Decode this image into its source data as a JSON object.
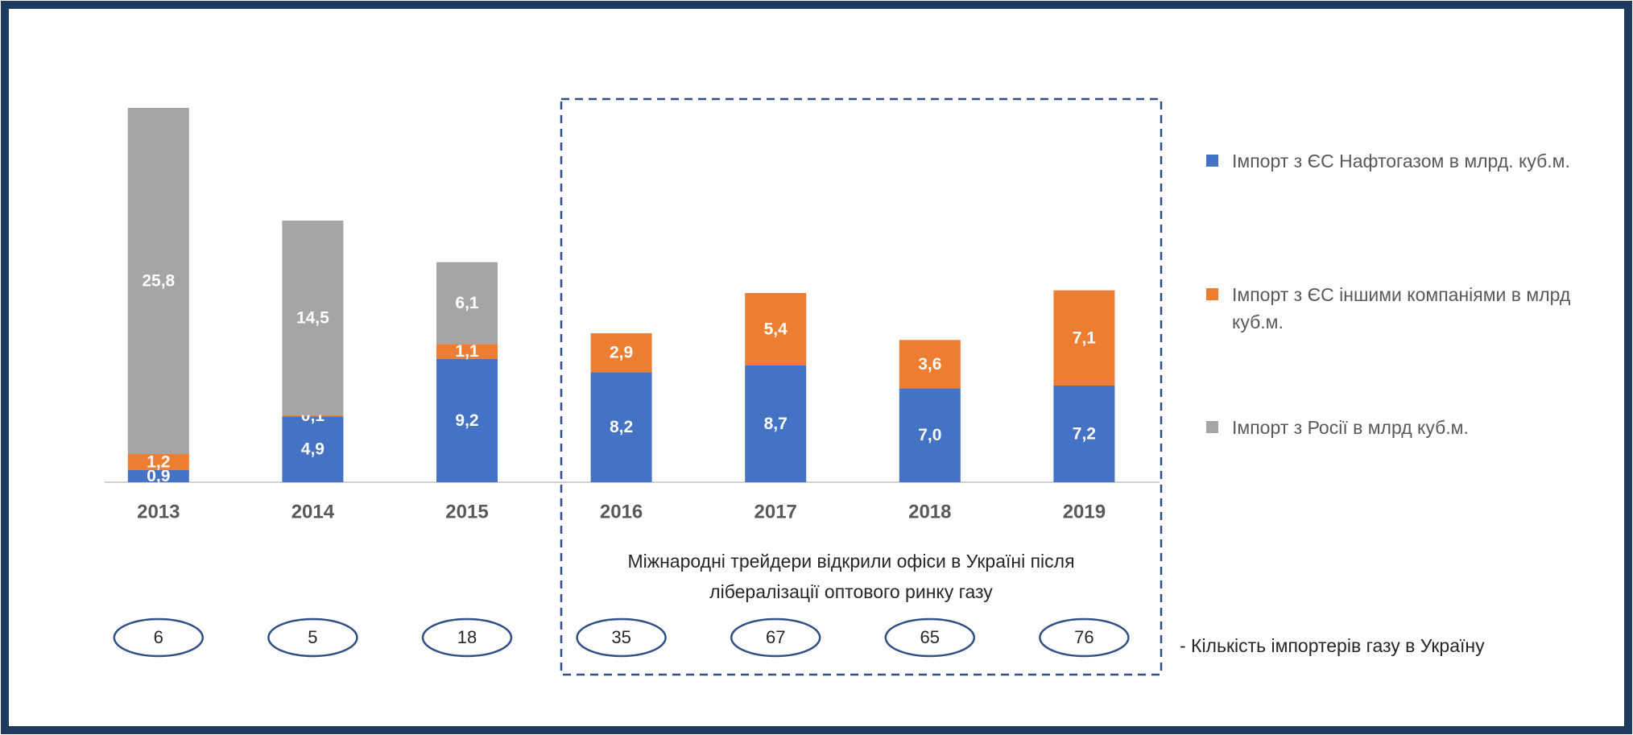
{
  "chart_data": {
    "type": "stacked_bar",
    "categories": [
      "2013",
      "2014",
      "2015",
      "2016",
      "2017",
      "2018",
      "2019"
    ],
    "ylim": [
      0,
      30
    ],
    "series": [
      {
        "name": "Імпорт з ЄС Нафтогазом в млрд. куб.м.",
        "color": "#4472c4",
        "values": [
          0.9,
          4.9,
          9.2,
          8.2,
          8.7,
          7.0,
          7.2
        ],
        "value_labels": [
          "0,9",
          "4,9",
          "9,2",
          "8,2",
          "8,7",
          "7,0",
          "7,2"
        ]
      },
      {
        "name": "Імпорт з ЄС іншими компаніями в млрд куб.м.",
        "color": "#ed7d31",
        "values": [
          1.2,
          0.1,
          1.1,
          2.9,
          5.4,
          3.6,
          7.1
        ],
        "value_labels": [
          "1,2",
          "0,1",
          "1,1",
          "2,9",
          "5,4",
          "3,6",
          "7,1"
        ]
      },
      {
        "name": "Імпорт з Росії в млрд куб.м.",
        "color": "#a5a5a5",
        "values": [
          25.8,
          14.5,
          6.1,
          null,
          null,
          null,
          null
        ],
        "value_labels": [
          "25,8",
          "14,5",
          "6,1",
          null,
          null,
          null,
          null
        ]
      }
    ],
    "annotation": [
      "Міжнародні трейдери відкрили офіси в Україні після",
      "лібералізації оптового ринку газу"
    ],
    "importers": {
      "label": "- Кількість імпортерів газу в Україну",
      "values": [
        6,
        5,
        18,
        35,
        67,
        65,
        76
      ]
    },
    "legend": "right"
  }
}
